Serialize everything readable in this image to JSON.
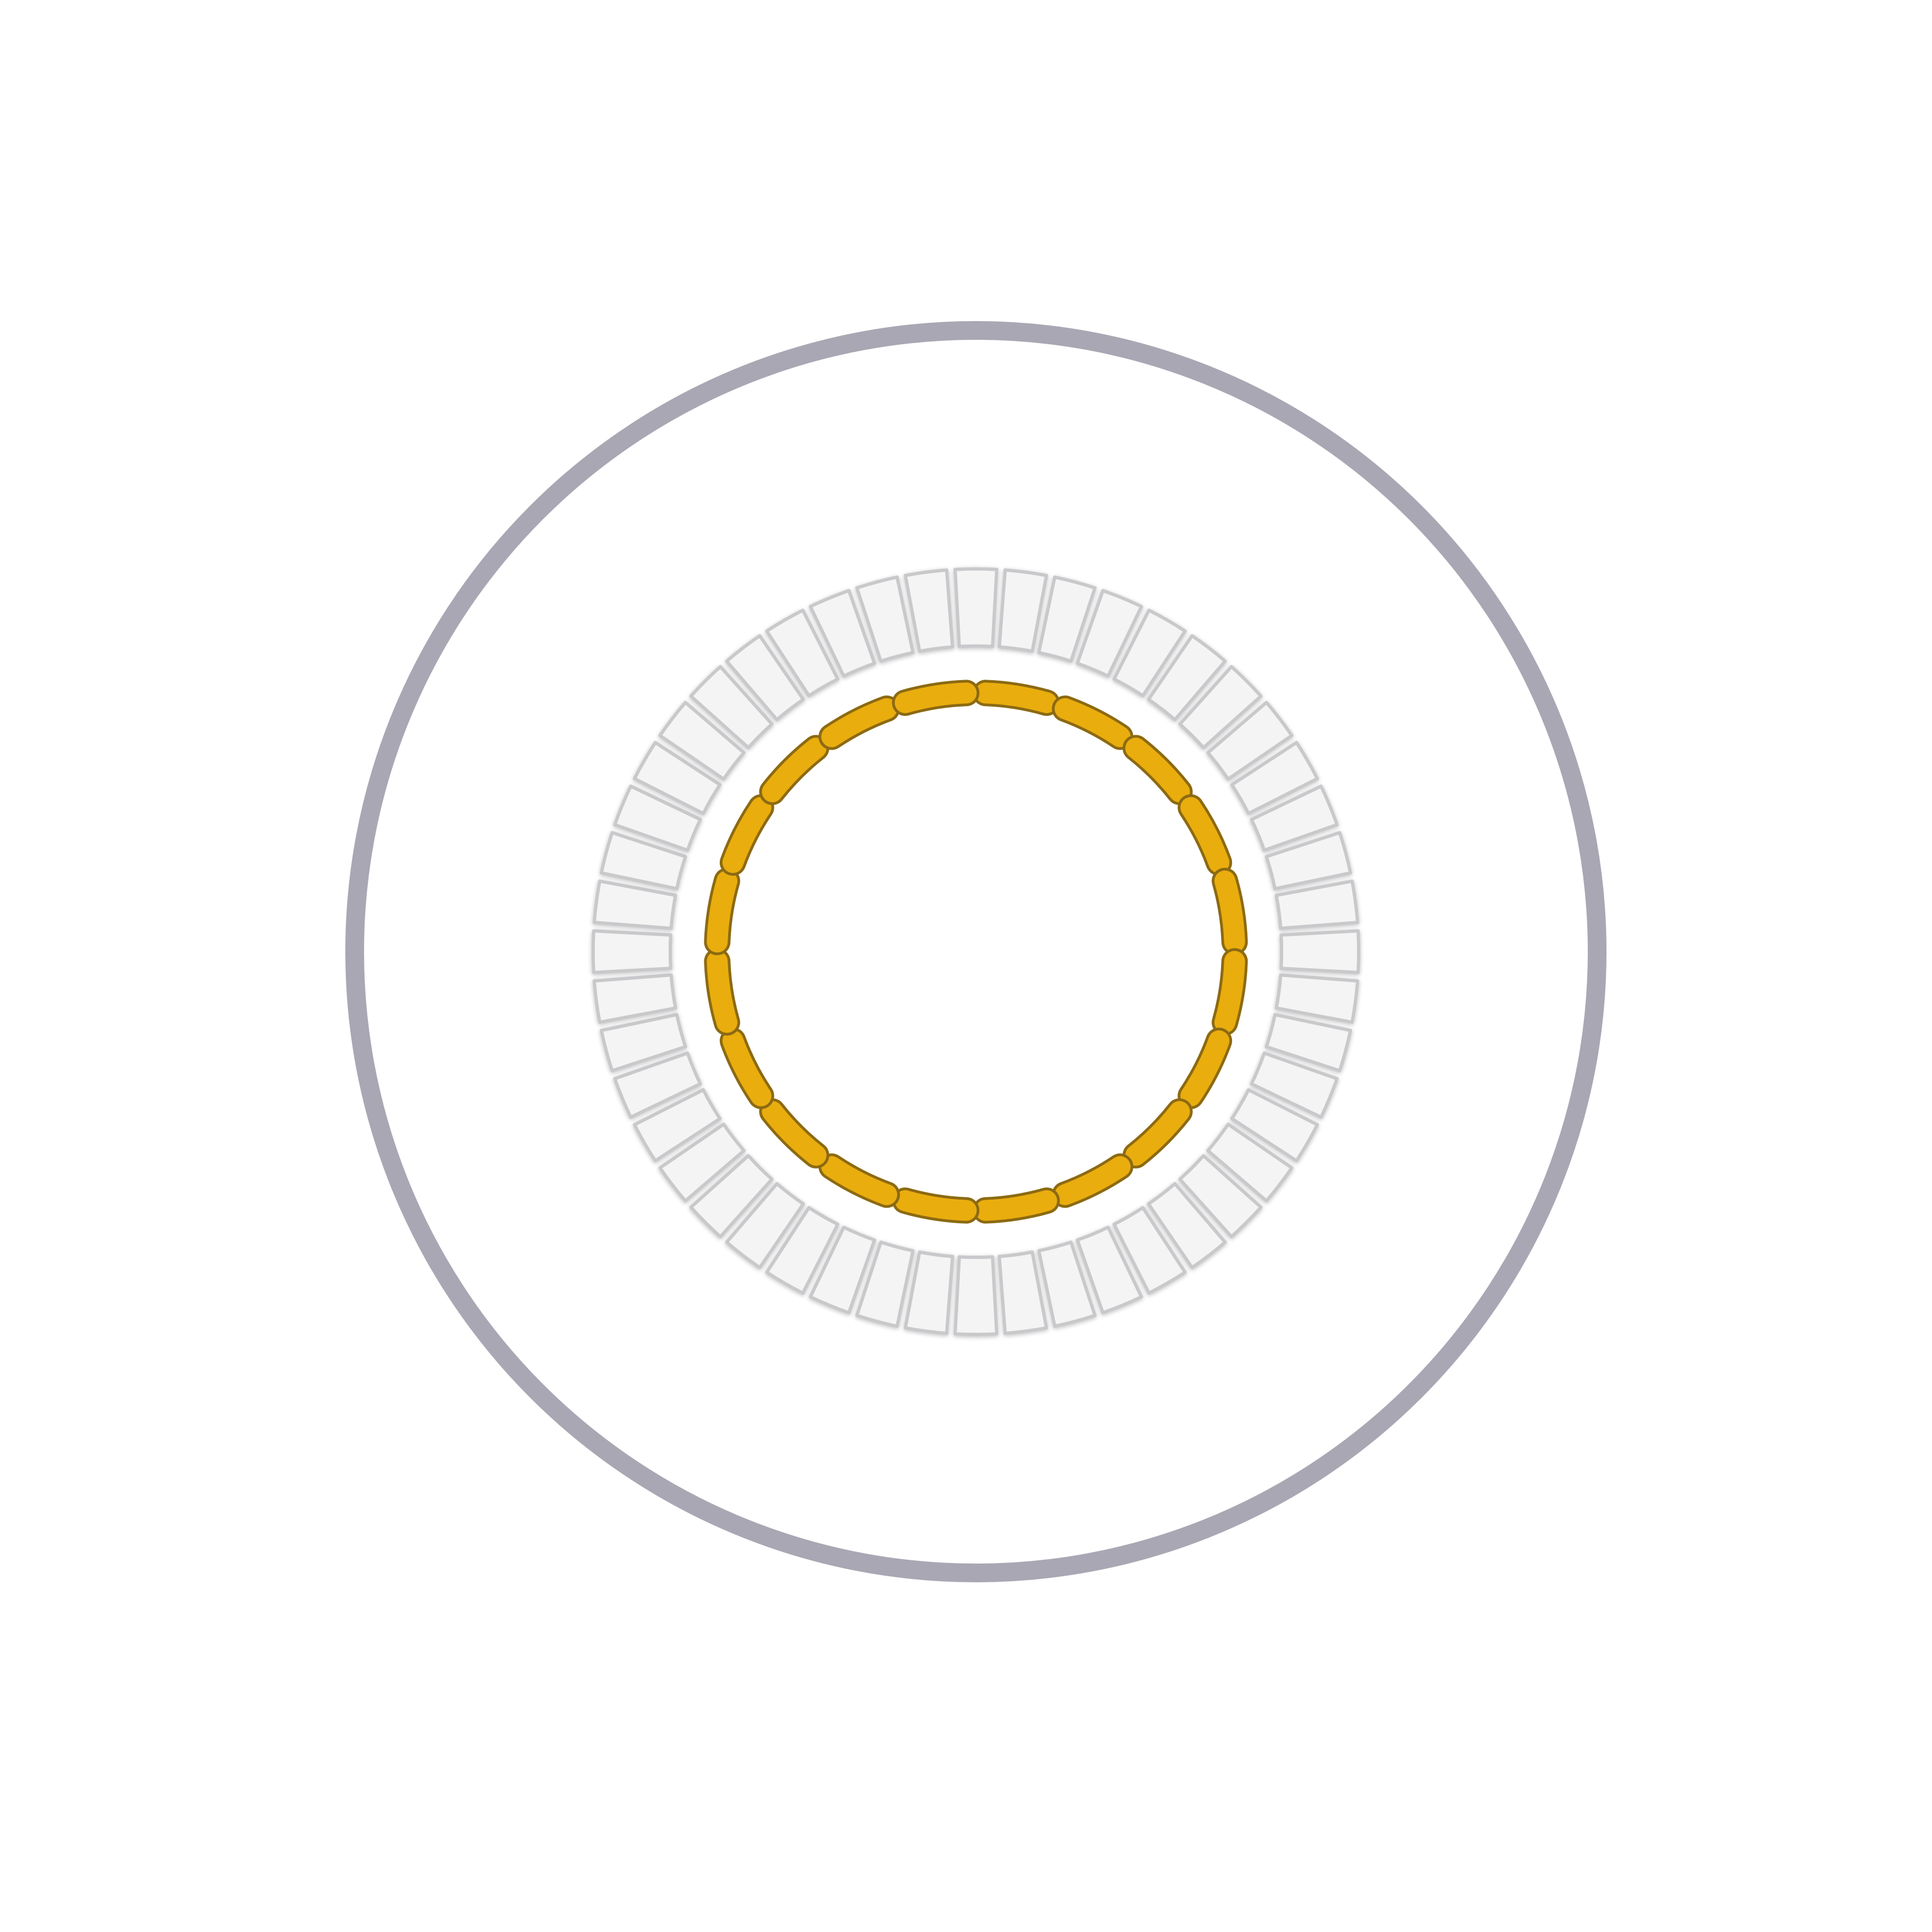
{
  "graphic": {
    "outer_ring": {
      "color": "#a9a7b3"
    },
    "gray_segments": {
      "count": 48,
      "fill": "#f4f4f4",
      "stroke": "#c9c9cc"
    },
    "gold_segments": {
      "count": 20,
      "fill": "#e9ad0e",
      "stroke": "#8c6a12"
    },
    "background": "#ffffff"
  }
}
